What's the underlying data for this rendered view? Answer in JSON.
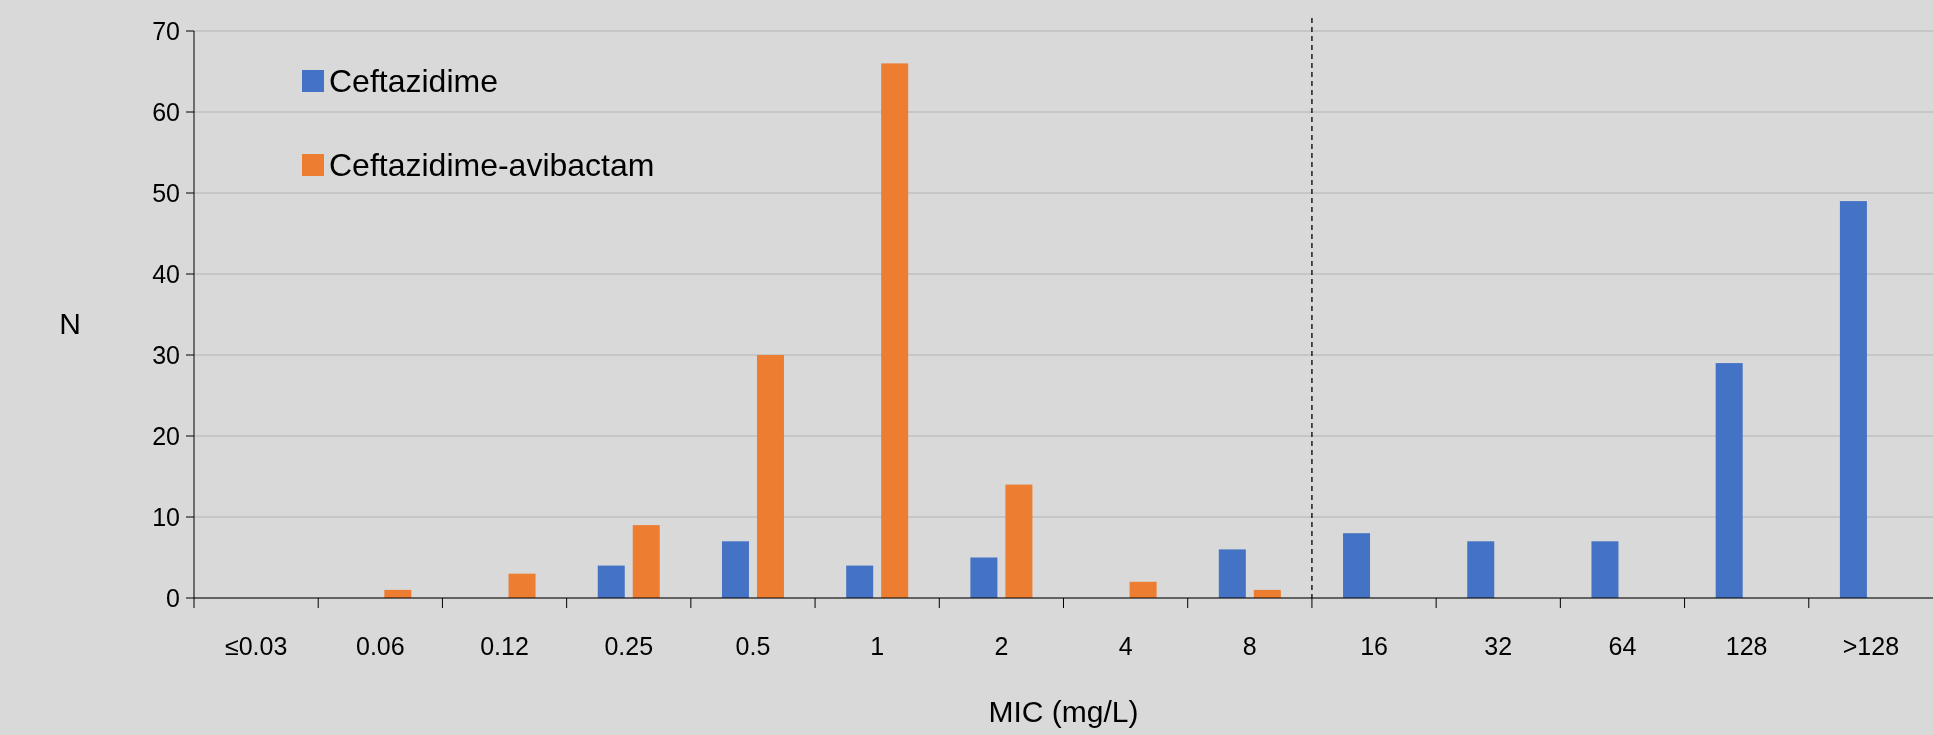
{
  "chart_data": {
    "type": "bar",
    "xlabel": "MIC (mg/L)",
    "ylabel": "N",
    "categories": [
      "≤0.03",
      "0.06",
      "0.12",
      "0.25",
      "0.5",
      "1",
      "2",
      "4",
      "8",
      "16",
      "32",
      "64",
      "128",
      ">128"
    ],
    "series": [
      {
        "name": "Ceftazidime",
        "color": "#4472c4",
        "values": [
          0,
          0,
          0,
          4,
          7,
          4,
          5,
          0,
          6,
          8,
          7,
          7,
          29,
          49
        ]
      },
      {
        "name": "Ceftazidime-avibactam",
        "color": "#ed7d31",
        "values": [
          0,
          1,
          3,
          9,
          30,
          66,
          14,
          2,
          1,
          0,
          0,
          0,
          0,
          0
        ]
      }
    ],
    "ylim": [
      0,
      70
    ],
    "yticks": [
      0,
      10,
      20,
      30,
      40,
      50,
      60,
      70
    ],
    "grid": "y",
    "legend": "top left",
    "ref_lines": [
      {
        "axis": "x",
        "value": "8",
        "line_style": "dashed",
        "color": "#000000"
      }
    ]
  }
}
